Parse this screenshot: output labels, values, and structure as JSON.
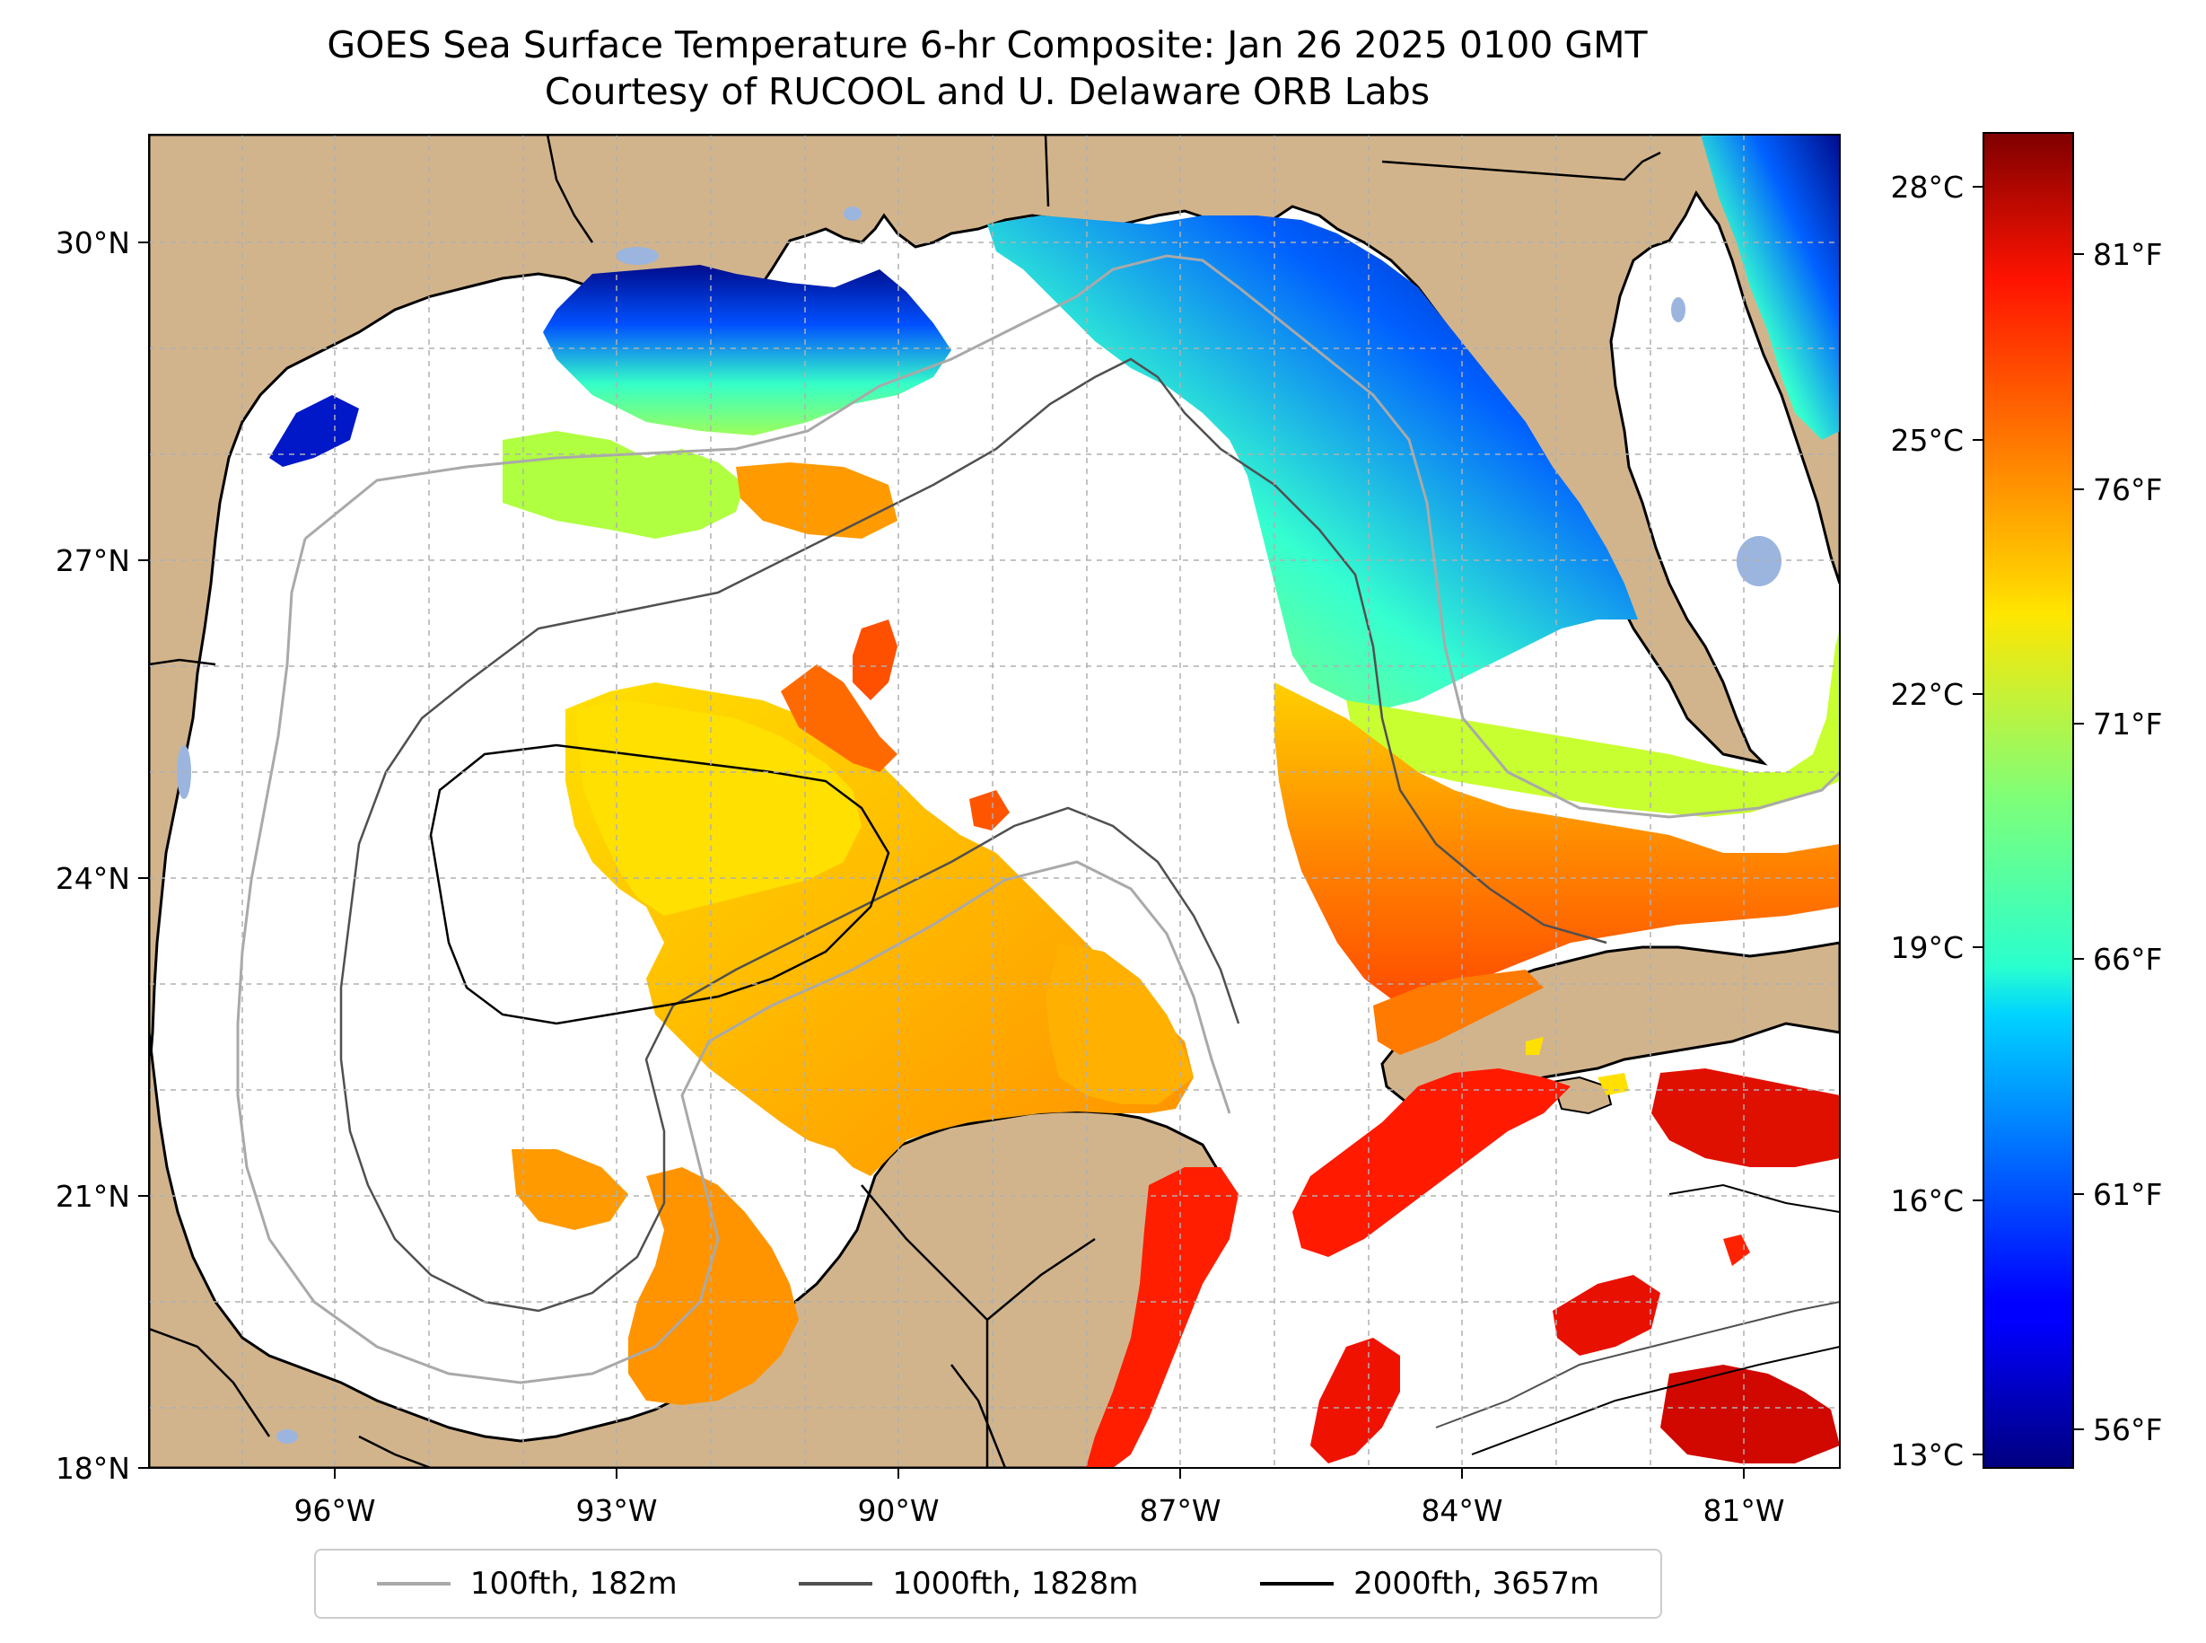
{
  "title": {
    "line1": "GOES Sea Surface Temperature 6-hr Composite: Jan 26 2025 0100 GMT",
    "line2": "Courtesy of RUCOOL and U. Delaware ORB Labs"
  },
  "map": {
    "region": "Gulf of Mexico",
    "lon_range": [
      -98,
      -80
    ],
    "lat_range": [
      18,
      31
    ],
    "lon_ticks": [
      "96°W",
      "93°W",
      "90°W",
      "87°W",
      "84°W",
      "81°W"
    ],
    "lat_ticks": [
      "30°N",
      "27°N",
      "24°N",
      "21°N",
      "18°N"
    ],
    "colors": {
      "land": "#d2b48c",
      "water_no_data": "#ffffff",
      "lakes": "#9bb5df",
      "grid": "#b0b0b0"
    }
  },
  "colorbar": {
    "celsius_ticks": [
      "28°C",
      "25°C",
      "22°C",
      "19°C",
      "16°C",
      "13°C"
    ],
    "fahrenheit_ticks": [
      "81°F",
      "76°F",
      "71°F",
      "66°F",
      "61°F",
      "56°F"
    ],
    "colormap": "jet"
  },
  "legend": {
    "items": [
      {
        "label": "100fth, 182m",
        "color": "#a9a9a9"
      },
      {
        "label": "1000fth, 1828m",
        "color": "#505050"
      },
      {
        "label": "2000fth, 3657m",
        "color": "#000000"
      }
    ]
  }
}
